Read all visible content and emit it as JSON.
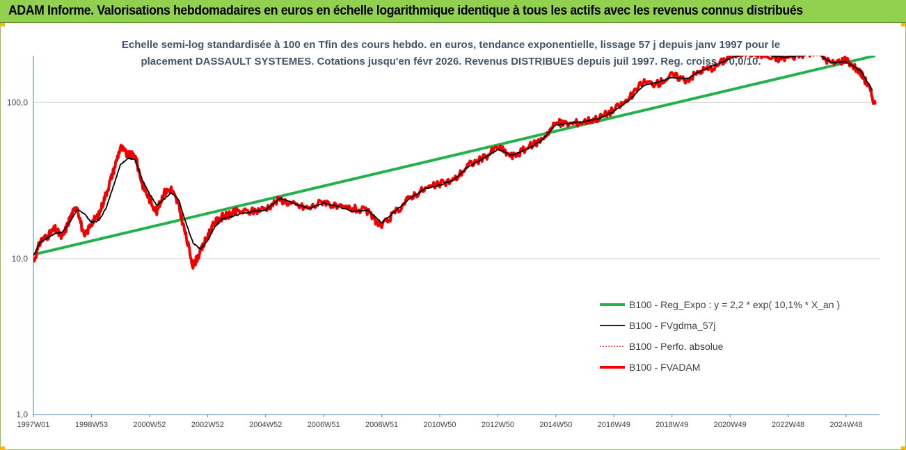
{
  "window": {
    "title": "ADAM Informe. Valorisations hebdomadaires en euros en échelle logarithmique identique à tous les actifs avec les revenus connus distribués",
    "accent_color": "#92d050",
    "corner_color": "#f5b800"
  },
  "chart_data": {
    "type": "line",
    "subtitle_lines": [
      "Echelle semi-log standardisée à 100 en Tfin des cours hebdo. en euros, tendance exponentielle, lissage 57 j depuis janv 1997 pour le",
      "placement DASSAULT SYSTEMES.  Cotations jusqu'en févr 2026. Revenus DISTRIBUES depuis juil 1997. Reg. croiss. : 0,0/10."
    ],
    "y_scale": "log",
    "ylim": [
      1,
      200
    ],
    "y_ticks": [
      "1,0",
      "10,0",
      "100,0"
    ],
    "y_tick_values": [
      1,
      10,
      100
    ],
    "xlim": [
      1997.0,
      2026.15
    ],
    "x_ticks": [
      "1997W01",
      "1998W53",
      "2000W52",
      "2002W52",
      "2004W52",
      "2006W51",
      "2008W51",
      "2010W50",
      "2012W50",
      "2014W50",
      "2016W49",
      "2018W49",
      "2020W49",
      "2022W48",
      "2024W48"
    ],
    "x_tick_values": [
      1997.0,
      1999.0,
      2001.0,
      2003.0,
      2005.0,
      2007.0,
      2009.0,
      2011.0,
      2013.0,
      2015.0,
      2017.0,
      2019.0,
      2021.0,
      2023.0,
      2025.0
    ],
    "grid": "horizontal",
    "legend_position": "lower-right",
    "series": [
      {
        "name": "B100 - Reg_Expo : y = 2,2 * exp( 10,1% *  X_an )",
        "color": "#22b14c",
        "style": "solid-thick",
        "x": [
          1997.0,
          2026.0
        ],
        "y": [
          10.6,
          200
        ]
      },
      {
        "name": "B100 - FVgdma_57j",
        "color": "#000000",
        "style": "solid",
        "x": [
          1997.0,
          1997.25,
          1997.5,
          1997.75,
          1998.0,
          1998.25,
          1998.5,
          1998.75,
          1999.0,
          1999.25,
          1999.5,
          1999.75,
          2000.0,
          2000.25,
          2000.5,
          2000.75,
          2001.0,
          2001.25,
          2001.5,
          2001.75,
          2002.0,
          2002.25,
          2002.5,
          2002.75,
          2003.0,
          2003.25,
          2003.5,
          2003.75,
          2004.0,
          2004.5,
          2005.0,
          2005.5,
          2006.0,
          2006.5,
          2007.0,
          2007.5,
          2008.0,
          2008.5,
          2009.0,
          2009.5,
          2010.0,
          2010.5,
          2011.0,
          2011.5,
          2012.0,
          2012.5,
          2013.0,
          2013.5,
          2014.0,
          2014.5,
          2015.0,
          2015.5,
          2016.0,
          2016.5,
          2017.0,
          2017.5,
          2018.0,
          2018.5,
          2019.0,
          2019.5,
          2020.0,
          2020.5,
          2021.0,
          2021.5,
          2022.0,
          2022.5,
          2023.0,
          2023.5,
          2024.0,
          2024.5,
          2025.0,
          2025.5,
          2025.9
        ],
        "y": [
          10.5,
          12.8,
          13.6,
          14.5,
          14.8,
          17.0,
          20.5,
          19.5,
          17.0,
          17.5,
          21.0,
          29.0,
          40.0,
          44.0,
          43.0,
          32.0,
          26.0,
          22.0,
          24.0,
          26.5,
          24.0,
          17.0,
          12.6,
          11.5,
          13.0,
          16.0,
          18.0,
          18.5,
          19.0,
          20.0,
          20.5,
          24.5,
          22.5,
          21.0,
          22.8,
          21.5,
          20.0,
          20.5,
          17.0,
          20.5,
          24.5,
          28.0,
          29.5,
          32.0,
          39.0,
          44.0,
          50.0,
          46.0,
          50.0,
          57.0,
          72.0,
          74.0,
          76.0,
          79.0,
          88.0,
          102.0,
          128.0,
          135.0,
          145.0,
          142.0,
          160.0,
          175.0,
          192.0,
          205.0,
          210.0,
          198.0,
          196.0,
          200.0,
          205.0,
          180.0,
          183.0,
          160.0,
          120.0
        ]
      },
      {
        "name": "B100 - Perfo. absolue",
        "color": "#c00000",
        "style": "dotted",
        "x": [
          1997.0,
          1997.25,
          1997.5,
          1997.75,
          1998.0,
          1998.25,
          1998.5,
          1998.75,
          1999.0,
          1999.25,
          1999.5,
          1999.75,
          2000.0,
          2000.25,
          2000.5,
          2000.75,
          2001.0,
          2001.25,
          2001.5,
          2001.75,
          2002.0,
          2002.25,
          2002.5,
          2002.75,
          2003.0,
          2003.25,
          2003.5,
          2003.75,
          2004.0,
          2004.5,
          2005.0,
          2005.5,
          2006.0,
          2006.5,
          2007.0,
          2007.5,
          2008.0,
          2008.5,
          2009.0,
          2009.5,
          2010.0,
          2010.5,
          2011.0,
          2011.5,
          2012.0,
          2012.5,
          2013.0,
          2013.5,
          2014.0,
          2014.5,
          2015.0,
          2015.5,
          2016.0,
          2016.5,
          2017.0,
          2017.5,
          2018.0,
          2018.5,
          2019.0,
          2019.5,
          2020.0,
          2020.5,
          2021.0,
          2021.5,
          2022.0,
          2022.5,
          2023.0,
          2023.5,
          2024.0,
          2024.5,
          2025.0,
          2025.5,
          2025.75,
          2026.0
        ],
        "y": [
          9.5,
          13.0,
          14.0,
          15.5,
          13.5,
          18.0,
          22.0,
          13.5,
          17.0,
          19.0,
          26.0,
          36.0,
          52.0,
          46.0,
          46.0,
          30.0,
          24.0,
          20.0,
          26.5,
          28.0,
          22.0,
          14.0,
          9.0,
          11.0,
          14.0,
          17.0,
          18.5,
          19.0,
          20.0,
          20.0,
          21.0,
          24.0,
          22.0,
          21.0,
          23.5,
          21.0,
          21.0,
          20.0,
          16.0,
          20.0,
          25.0,
          28.0,
          30.0,
          32.0,
          40.0,
          44.0,
          52.0,
          45.0,
          51.0,
          58.0,
          74.0,
          73.0,
          76.0,
          80.0,
          90.0,
          105.0,
          135.0,
          132.0,
          150.0,
          140.0,
          160.0,
          170.0,
          200.0,
          210.0,
          205.0,
          190.0,
          195.0,
          205.0,
          210.0,
          178.0,
          190.0,
          155.0,
          130.0,
          97.0
        ]
      },
      {
        "name": "B100 - FVADAM",
        "color": "#ff0000",
        "style": "solid-thick",
        "x": [
          1997.0,
          1997.25,
          1997.5,
          1997.75,
          1998.0,
          1998.25,
          1998.5,
          1998.75,
          1999.0,
          1999.25,
          1999.5,
          1999.75,
          2000.0,
          2000.25,
          2000.5,
          2000.75,
          2001.0,
          2001.25,
          2001.5,
          2001.75,
          2002.0,
          2002.25,
          2002.5,
          2002.75,
          2003.0,
          2003.25,
          2003.5,
          2003.75,
          2004.0,
          2004.5,
          2005.0,
          2005.5,
          2006.0,
          2006.5,
          2007.0,
          2007.5,
          2008.0,
          2008.5,
          2009.0,
          2009.5,
          2010.0,
          2010.5,
          2011.0,
          2011.5,
          2012.0,
          2012.5,
          2013.0,
          2013.5,
          2014.0,
          2014.5,
          2015.0,
          2015.5,
          2016.0,
          2016.5,
          2017.0,
          2017.5,
          2018.0,
          2018.5,
          2019.0,
          2019.5,
          2020.0,
          2020.5,
          2021.0,
          2021.5,
          2022.0,
          2022.5,
          2023.0,
          2023.5,
          2024.0,
          2024.5,
          2025.0,
          2025.5,
          2025.75,
          2026.0
        ],
        "y": [
          9.5,
          13.0,
          14.0,
          15.5,
          13.5,
          18.0,
          22.0,
          13.5,
          17.0,
          19.0,
          26.0,
          36.0,
          52.0,
          46.0,
          46.0,
          30.0,
          24.0,
          20.0,
          26.5,
          28.0,
          22.0,
          14.0,
          9.0,
          11.0,
          14.0,
          17.0,
          18.5,
          19.0,
          20.0,
          20.0,
          21.0,
          24.0,
          22.0,
          21.0,
          23.5,
          21.0,
          21.0,
          20.0,
          16.0,
          20.0,
          25.0,
          28.0,
          30.0,
          32.0,
          40.0,
          44.0,
          52.0,
          45.0,
          51.0,
          58.0,
          74.0,
          73.0,
          76.0,
          80.0,
          90.0,
          105.0,
          135.0,
          132.0,
          150.0,
          140.0,
          160.0,
          170.0,
          200.0,
          210.0,
          205.0,
          190.0,
          195.0,
          205.0,
          210.0,
          178.0,
          190.0,
          155.0,
          130.0,
          97.0
        ]
      }
    ]
  }
}
